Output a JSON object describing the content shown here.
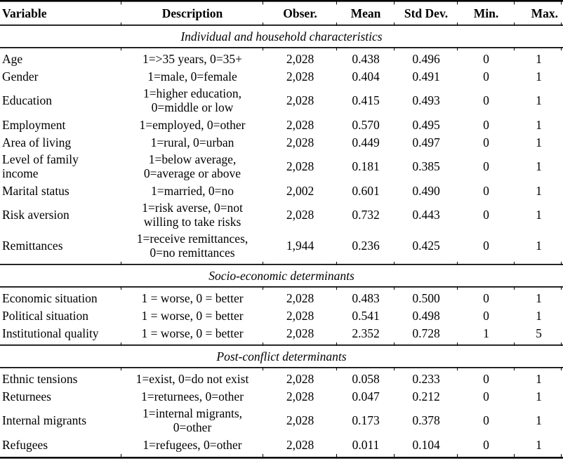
{
  "colors": {
    "text": "#000000",
    "background": "#ffffff",
    "rules": "#000000"
  },
  "table": {
    "headers": {
      "variable": "Variable",
      "description": "Description",
      "obser": "Obser.",
      "mean": "Mean",
      "std": "Std Dev.",
      "min": "Min.",
      "max": "Max."
    },
    "sections": [
      {
        "title": "Individual and household characteristics",
        "rows": [
          {
            "variable": "Age",
            "description": "1=>35 years, 0=35+",
            "obser": "2,028",
            "mean": "0.438",
            "std": "0.496",
            "min": "0",
            "max": "1"
          },
          {
            "variable": "Gender",
            "description": "1=male, 0=female",
            "obser": "2,028",
            "mean": "0.404",
            "std": "0.491",
            "min": "0",
            "max": "1"
          },
          {
            "variable": "Education",
            "description": "1=higher education,\n0=middle or low",
            "obser": "2,028",
            "mean": "0.415",
            "std": "0.493",
            "min": "0",
            "max": "1"
          },
          {
            "variable": "Employment",
            "description": "1=employed, 0=other",
            "obser": "2,028",
            "mean": "0.570",
            "std": "0.495",
            "min": "0",
            "max": "1"
          },
          {
            "variable": "Area of living",
            "description": "1=rural, 0=urban",
            "obser": "2,028",
            "mean": "0.449",
            "std": "0.497",
            "min": "0",
            "max": "1"
          },
          {
            "variable": "Level of family\nincome",
            "description": "1=below average,\n0=average or above",
            "obser": "2,028",
            "mean": "0.181",
            "std": "0.385",
            "min": "0",
            "max": "1"
          },
          {
            "variable": "Marital status",
            "description": "1=married, 0=no",
            "obser": "2,002",
            "mean": "0.601",
            "std": "0.490",
            "min": "0",
            "max": "1"
          },
          {
            "variable": "Risk aversion",
            "description": "1=risk averse, 0=not\nwilling to take risks",
            "obser": "2,028",
            "mean": "0.732",
            "std": "0.443",
            "min": "0",
            "max": "1"
          },
          {
            "variable": "Remittances",
            "description": "1=receive remittances,\n0=no remittances",
            "obser": "1,944",
            "mean": "0.236",
            "std": "0.425",
            "min": "0",
            "max": "1"
          }
        ]
      },
      {
        "title": "Socio-economic determinants",
        "rows": [
          {
            "variable": "Economic situation",
            "description": "1 = worse, 0 = better",
            "obser": "2,028",
            "mean": "0.483",
            "std": "0.500",
            "min": "0",
            "max": "1"
          },
          {
            "variable": "Political situation",
            "description": "1 = worse, 0 = better",
            "obser": "2,028",
            "mean": "0.541",
            "std": "0.498",
            "min": "0",
            "max": "1"
          },
          {
            "variable": "Institutional quality",
            "description": "1 = worse, 0 = better",
            "obser": "2,028",
            "mean": "2.352",
            "std": "0.728",
            "min": "1",
            "max": "5"
          }
        ]
      },
      {
        "title": "Post-conflict determinants",
        "rows": [
          {
            "variable": "Ethnic tensions",
            "description": "1=exist, 0=do not exist",
            "obser": "2,028",
            "mean": "0.058",
            "std": "0.233",
            "min": "0",
            "max": "1"
          },
          {
            "variable": "Returnees",
            "description": "1=returnees, 0=other",
            "obser": "2,028",
            "mean": "0.047",
            "std": "0.212",
            "min": "0",
            "max": "1"
          },
          {
            "variable": "Internal migrants",
            "description": "1=internal migrants,\n0=other",
            "obser": "2,028",
            "mean": "0.173",
            "std": "0.378",
            "min": "0",
            "max": "1"
          },
          {
            "variable": "Refugees",
            "description": "1=refugees, 0=other",
            "obser": "2,028",
            "mean": "0.011",
            "std": "0.104",
            "min": "0",
            "max": "1"
          }
        ]
      }
    ]
  }
}
